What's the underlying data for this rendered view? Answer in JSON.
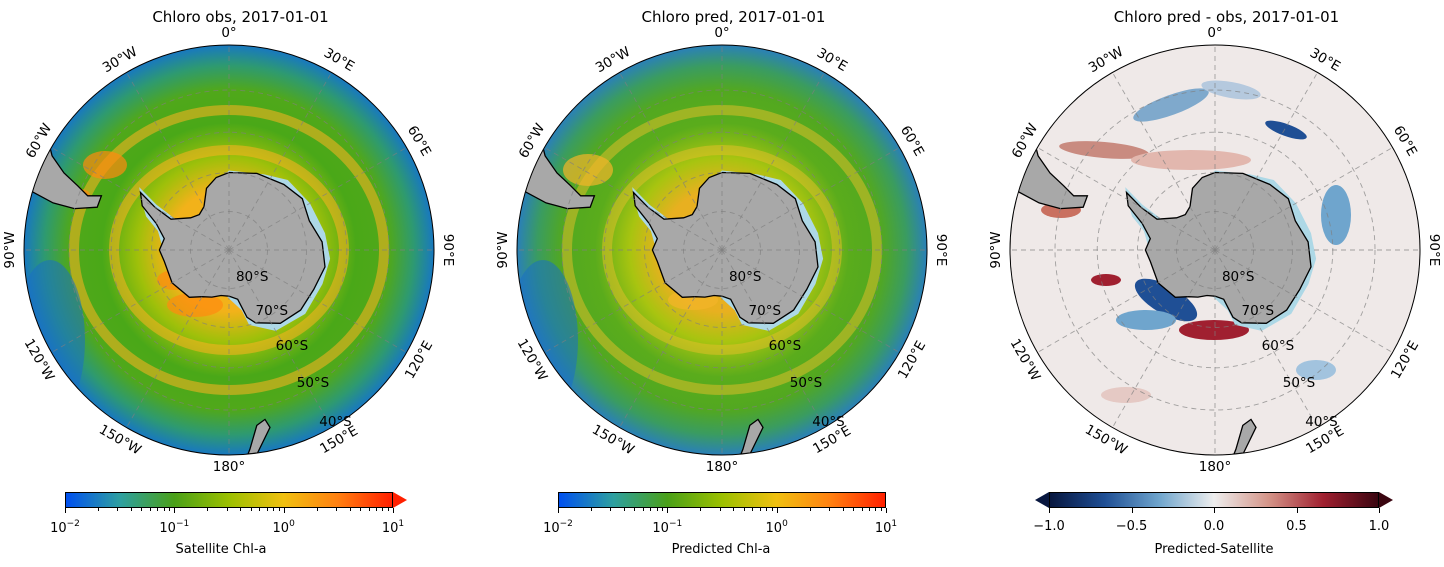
{
  "panels": [
    {
      "title": "Chloro obs, 2017-01-01",
      "colorbar": {
        "label": "Satellite Chl-a",
        "ticks": [
          "10",
          "10",
          "10",
          "10"
        ],
        "tick_exps": [
          "−2",
          "−1",
          "0",
          "1"
        ],
        "scale": "log",
        "range": [
          0.01,
          10
        ],
        "extend": "max",
        "colors": [
          "#0050f0",
          "#2ea0a0",
          "#4aa018",
          "#9cc000",
          "#f0c010",
          "#ff8010",
          "#ff2000"
        ]
      }
    },
    {
      "title": "Chloro pred, 2017-01-01",
      "colorbar": {
        "label": "Predicted Chl-a",
        "ticks": [
          "10",
          "10",
          "10",
          "10"
        ],
        "tick_exps": [
          "−2",
          "−1",
          "0",
          "1"
        ],
        "scale": "log",
        "range": [
          0.01,
          10
        ],
        "extend": "none",
        "colors": [
          "#0050f0",
          "#2ea0a0",
          "#4aa018",
          "#9cc000",
          "#f0c010",
          "#ff8010",
          "#ff2000"
        ]
      }
    },
    {
      "title": "Chloro pred - obs, 2017-01-01",
      "colorbar": {
        "label": "Predicted-Satellite",
        "ticks": [
          "−1.0",
          "−0.5",
          "0.0",
          "0.5",
          "1.0"
        ],
        "scale": "linear",
        "range": [
          -1,
          1
        ],
        "extend": "both",
        "colors": [
          "#08173f",
          "#1f4f95",
          "#6fa5cd",
          "#eeeeee",
          "#d49488",
          "#a02030",
          "#3a0510"
        ]
      }
    }
  ],
  "map_labels": {
    "lon": [
      "0°",
      "30°E",
      "60°E",
      "90°E",
      "120°E",
      "150°E",
      "180°",
      "150°W",
      "120°W",
      "90°W",
      "60°W",
      "30°W"
    ],
    "lat": [
      "80°S",
      "70°S",
      "60°S",
      "50°S",
      "40°S"
    ]
  },
  "colors": {
    "land": "#a8a8a8",
    "ice": "#add8e6",
    "gridline": "#7f7f7f",
    "coast": "#000000"
  }
}
